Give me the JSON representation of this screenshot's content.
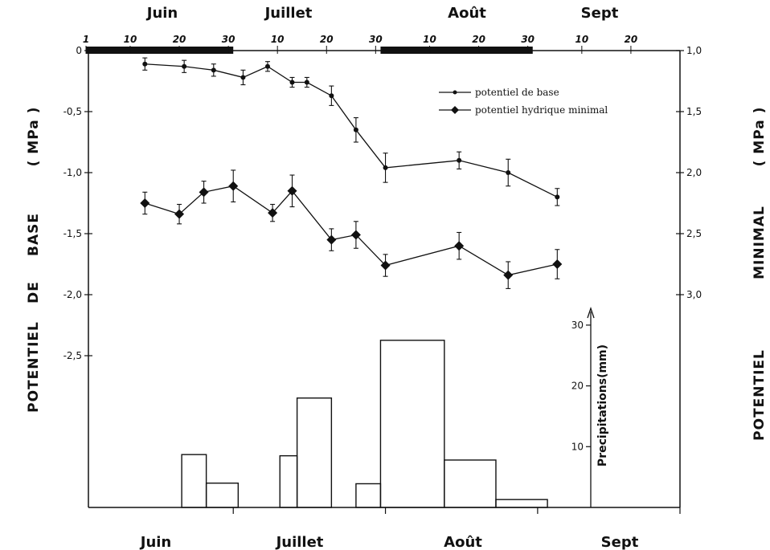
{
  "chart_data": {
    "type": "line",
    "months_top": [
      "Juin",
      "Juillet",
      "Août",
      "Sept"
    ],
    "months_bottom": [
      "Juin",
      "Juillet",
      "Août",
      "Sept"
    ],
    "day_ticks": [
      {
        "label": "1",
        "day": 1
      },
      {
        "label": "10",
        "day": 10
      },
      {
        "label": "20",
        "day": 20
      },
      {
        "label": "30",
        "day": 30
      },
      {
        "label": "10",
        "day": 40
      },
      {
        "label": "20",
        "day": 50
      },
      {
        "label": "30",
        "day": 60
      },
      {
        "label": "10",
        "day": 71
      },
      {
        "label": "20",
        "day": 81
      },
      {
        "label": "30",
        "day": 91
      },
      {
        "label": "10",
        "day": 102
      },
      {
        "label": "20",
        "day": 112
      }
    ],
    "x_range": [
      1,
      122
    ],
    "dry_periods": [
      [
        1,
        31
      ],
      [
        61,
        92
      ]
    ],
    "left_axis": {
      "ticks": [
        "0",
        "-0,5",
        "-1,0",
        "-1,5",
        "-2,0",
        "-2,5"
      ],
      "values": [
        0,
        -0.5,
        -1.0,
        -1.5,
        -2.0,
        -2.5
      ],
      "range": [
        0,
        -2.5
      ],
      "label_words": [
        "POTENTIEL",
        "DE",
        "BASE",
        "( MPa )"
      ]
    },
    "right_axis": {
      "ticks": [
        "1,0",
        "1,5",
        "2,0",
        "2,5",
        "3,0"
      ],
      "values": [
        -1.0,
        -1.5,
        -2.0,
        -2.5,
        -3.0
      ],
      "range": [
        -1.0,
        -3.0
      ],
      "label_words": [
        "POTENTIEL",
        "MINIMAL",
        "( MPa )"
      ]
    },
    "precip_axis": {
      "ticks": [
        "10",
        "20",
        "30"
      ],
      "values": [
        10,
        20,
        30
      ],
      "max": 30,
      "label": "Precipitations(mm)"
    },
    "series": [
      {
        "name": "potentiel de base",
        "marker": "dot",
        "axis": "left",
        "x": [
          13,
          21,
          27,
          33,
          38,
          43,
          46,
          51,
          56,
          62,
          77,
          87,
          97
        ],
        "y": [
          -0.11,
          -0.13,
          -0.16,
          -0.22,
          -0.13,
          -0.26,
          -0.26,
          -0.37,
          -0.65,
          -0.96,
          -0.9,
          -1.0,
          -1.2
        ],
        "err": [
          0.05,
          0.05,
          0.05,
          0.06,
          0.04,
          0.04,
          0.04,
          0.08,
          0.1,
          0.12,
          0.07,
          0.11,
          0.07
        ]
      },
      {
        "name": "potentiel hydrique minimal",
        "marker": "diamond",
        "axis": "right",
        "x": [
          13,
          20,
          25,
          31,
          39,
          43,
          51,
          56,
          62,
          77,
          87,
          97
        ],
        "y": [
          -2.25,
          -2.34,
          -2.16,
          -2.11,
          -2.33,
          -2.15,
          -2.55,
          -2.51,
          -2.76,
          -2.6,
          -2.84,
          -2.75
        ],
        "err": [
          0.09,
          0.08,
          0.09,
          0.13,
          0.07,
          0.13,
          0.09,
          0.11,
          0.09,
          0.11,
          0.11,
          0.12
        ]
      }
    ],
    "precipitation": {
      "type": "bar",
      "bars": [
        {
          "start": 20.5,
          "end": 25.5,
          "value": 8.7
        },
        {
          "start": 25.5,
          "end": 32,
          "value": 4.0
        },
        {
          "start": 40.5,
          "end": 44,
          "value": 8.5
        },
        {
          "start": 44,
          "end": 51,
          "value": 18.0
        },
        {
          "start": 56,
          "end": 61,
          "value": 3.9
        },
        {
          "start": 61,
          "end": 74,
          "value": 27.5
        },
        {
          "start": 74,
          "end": 84.5,
          "value": 7.8
        },
        {
          "start": 84.5,
          "end": 95,
          "value": 1.3
        }
      ]
    }
  }
}
